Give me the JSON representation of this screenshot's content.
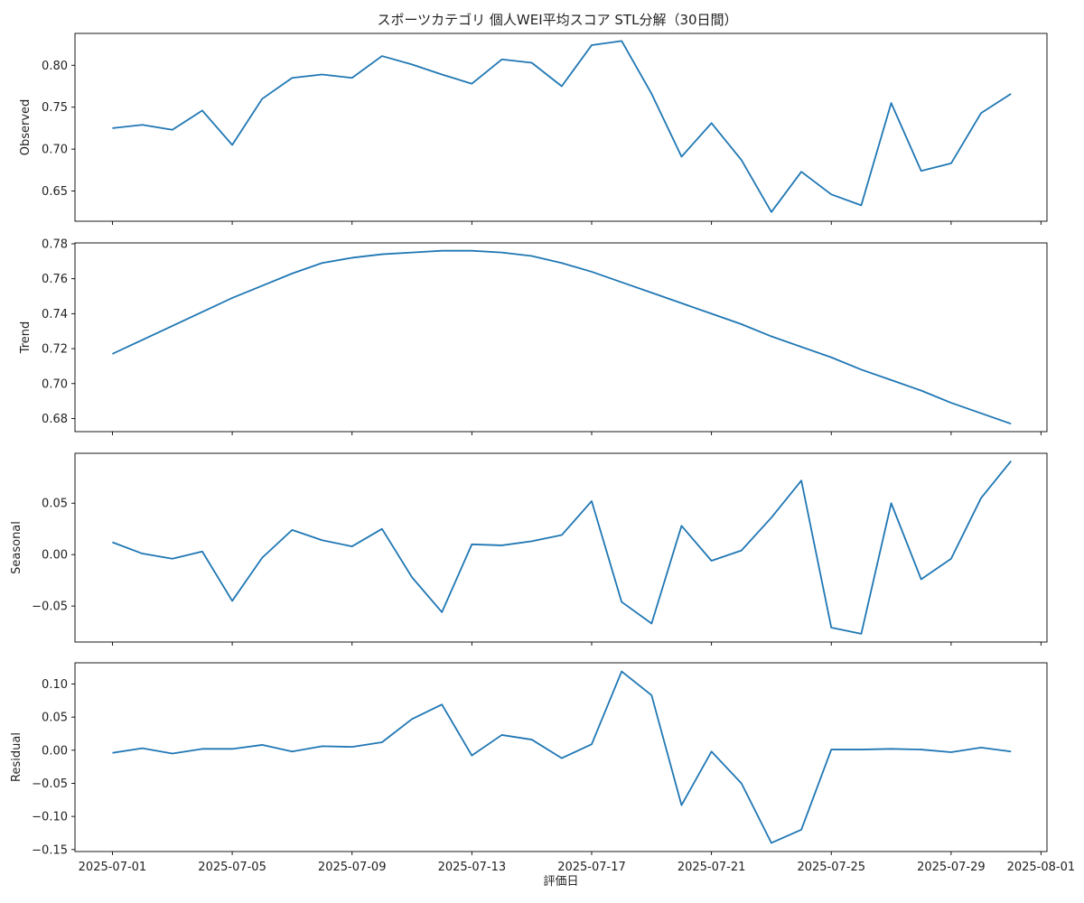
{
  "chart_data": {
    "type": "line",
    "title": "スポーツカテゴリ 個人WEI平均スコア STL分解（30日間）",
    "xlabel": "評価日",
    "x_ticks": [
      "2025-07-01",
      "2025-07-05",
      "2025-07-09",
      "2025-07-13",
      "2025-07-17",
      "2025-07-21",
      "2025-07-25",
      "2025-07-29",
      "2025-08-01"
    ],
    "x_range": [
      "2025-06-29",
      "2025-08-01"
    ],
    "dates": [
      "2025-07-01",
      "2025-07-02",
      "2025-07-03",
      "2025-07-04",
      "2025-07-05",
      "2025-07-06",
      "2025-07-07",
      "2025-07-08",
      "2025-07-09",
      "2025-07-10",
      "2025-07-11",
      "2025-07-12",
      "2025-07-13",
      "2025-07-14",
      "2025-07-15",
      "2025-07-16",
      "2025-07-17",
      "2025-07-18",
      "2025-07-19",
      "2025-07-20",
      "2025-07-21",
      "2025-07-22",
      "2025-07-23",
      "2025-07-24",
      "2025-07-25",
      "2025-07-26",
      "2025-07-27",
      "2025-07-28",
      "2025-07-29",
      "2025-07-30",
      "2025-07-31"
    ],
    "line_color": "#1f77b4",
    "panels": [
      {
        "name": "Observed",
        "ylabel": "Observed",
        "ylim": [
          0.614,
          0.838
        ],
        "yticks": [
          0.65,
          0.7,
          0.75,
          0.8
        ],
        "ytick_labels": [
          "0.65",
          "0.70",
          "0.75",
          "0.80"
        ],
        "values": [
          0.725,
          0.729,
          0.723,
          0.746,
          0.705,
          0.76,
          0.785,
          0.789,
          0.785,
          0.811,
          0.801,
          0.789,
          0.778,
          0.807,
          0.803,
          0.775,
          0.824,
          0.829,
          0.766,
          0.691,
          0.731,
          0.687,
          0.625,
          0.673,
          0.646,
          0.633,
          0.755,
          0.674,
          0.683,
          0.743,
          0.766
        ]
      },
      {
        "name": "Trend",
        "ylabel": "Trend",
        "ylim": [
          0.6725,
          0.7805
        ],
        "yticks": [
          0.68,
          0.7,
          0.72,
          0.74,
          0.76,
          0.78
        ],
        "ytick_labels": [
          "0.68",
          "0.70",
          "0.72",
          "0.74",
          "0.76",
          "0.78"
        ],
        "values": [
          0.717,
          0.725,
          0.733,
          0.741,
          0.749,
          0.756,
          0.763,
          0.769,
          0.772,
          0.774,
          0.775,
          0.776,
          0.776,
          0.775,
          0.773,
          0.769,
          0.764,
          0.758,
          0.752,
          0.746,
          0.74,
          0.734,
          0.727,
          0.721,
          0.715,
          0.708,
          0.702,
          0.696,
          0.689,
          0.683,
          0.677
        ]
      },
      {
        "name": "Seasonal",
        "ylabel": "Seasonal",
        "ylim": [
          -0.085,
          0.0985
        ],
        "yticks": [
          -0.05,
          0.0,
          0.05
        ],
        "ytick_labels": [
          "−0.05",
          "0.00",
          "0.05"
        ],
        "values": [
          0.012,
          0.001,
          -0.004,
          0.003,
          -0.045,
          -0.003,
          0.024,
          0.014,
          0.008,
          0.025,
          -0.022,
          -0.056,
          0.01,
          0.009,
          0.013,
          0.019,
          0.052,
          -0.046,
          -0.067,
          0.028,
          -0.006,
          0.004,
          0.036,
          0.072,
          -0.071,
          -0.077,
          0.05,
          -0.024,
          -0.004,
          0.055,
          0.091
        ]
      },
      {
        "name": "Residual",
        "ylabel": "Residual",
        "ylim": [
          -0.153,
          0.132
        ],
        "yticks": [
          -0.15,
          -0.1,
          -0.05,
          0.0,
          0.05,
          0.1
        ],
        "ytick_labels": [
          "−0.15",
          "−0.10",
          "−0.05",
          "0.00",
          "0.05",
          "0.10"
        ],
        "values": [
          -0.004,
          0.003,
          -0.005,
          0.002,
          0.002,
          0.008,
          -0.002,
          0.006,
          0.005,
          0.012,
          0.047,
          0.069,
          -0.008,
          0.023,
          0.016,
          -0.012,
          0.009,
          0.119,
          0.083,
          -0.083,
          -0.002,
          -0.05,
          -0.14,
          -0.12,
          0.001,
          0.001,
          0.002,
          0.001,
          -0.003,
          0.004,
          -0.002
        ]
      }
    ]
  }
}
